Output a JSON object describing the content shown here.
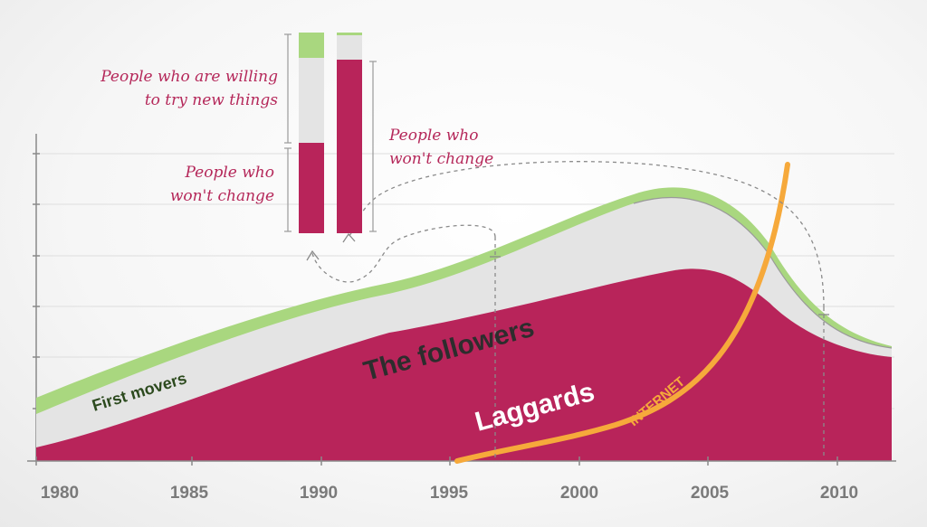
{
  "chart_data": {
    "type": "area",
    "x_ticks": [
      "1980",
      "1985",
      "1990",
      "1995",
      "2000",
      "2005",
      "2010"
    ],
    "series": [
      {
        "name": "Laggards",
        "color": "#b8245a"
      },
      {
        "name": "The followers",
        "color": "#e4e4e4"
      },
      {
        "name": "First movers",
        "color": "#a9d77f"
      }
    ],
    "trend_line": {
      "label": "INTERNET",
      "color": "#f6a93b"
    },
    "inset_bars": [
      {
        "label": "People who are willing to try new things",
        "label_lines": [
          "People who are willing",
          "to try new things"
        ]
      },
      {
        "label": "People who won't change",
        "label_lines": [
          "People who",
          "won't change"
        ]
      },
      {
        "label": "People who won't change",
        "label_lines": [
          "People who",
          "won't change"
        ]
      }
    ],
    "grid": true
  }
}
